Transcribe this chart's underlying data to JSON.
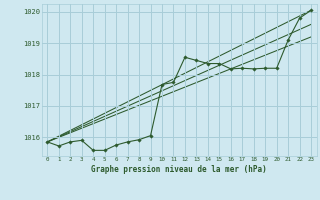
{
  "title": "Graphe pression niveau de la mer (hPa)",
  "bg_color": "#cfe8f0",
  "grid_color": "#a8cdd8",
  "line_color": "#2d5a2d",
  "xlim": [
    -0.5,
    23.5
  ],
  "ylim": [
    1015.4,
    1020.25
  ],
  "yticks": [
    1016,
    1017,
    1018,
    1019,
    1020
  ],
  "xticks": [
    0,
    1,
    2,
    3,
    4,
    5,
    6,
    7,
    8,
    9,
    10,
    11,
    12,
    13,
    14,
    15,
    16,
    17,
    18,
    19,
    20,
    21,
    22,
    23
  ],
  "series_main": {
    "x": [
      0,
      1,
      2,
      3,
      4,
      5,
      6,
      7,
      8,
      9,
      10,
      11,
      12,
      13,
      14,
      15,
      16,
      17,
      18,
      19,
      20,
      21,
      22,
      23
    ],
    "y": [
      1015.85,
      1015.72,
      1015.85,
      1015.9,
      1015.58,
      1015.58,
      1015.75,
      1015.85,
      1015.92,
      1016.05,
      1017.68,
      1017.75,
      1018.55,
      1018.45,
      1018.35,
      1018.35,
      1018.18,
      1018.2,
      1018.18,
      1018.2,
      1018.2,
      1019.1,
      1019.8,
      1020.05
    ]
  },
  "line1": {
    "x": [
      0,
      23
    ],
    "y": [
      1015.85,
      1020.05
    ]
  },
  "line2": {
    "x": [
      0,
      23
    ],
    "y": [
      1015.85,
      1019.6
    ]
  },
  "line3": {
    "x": [
      0,
      23
    ],
    "y": [
      1015.85,
      1019.2
    ]
  }
}
